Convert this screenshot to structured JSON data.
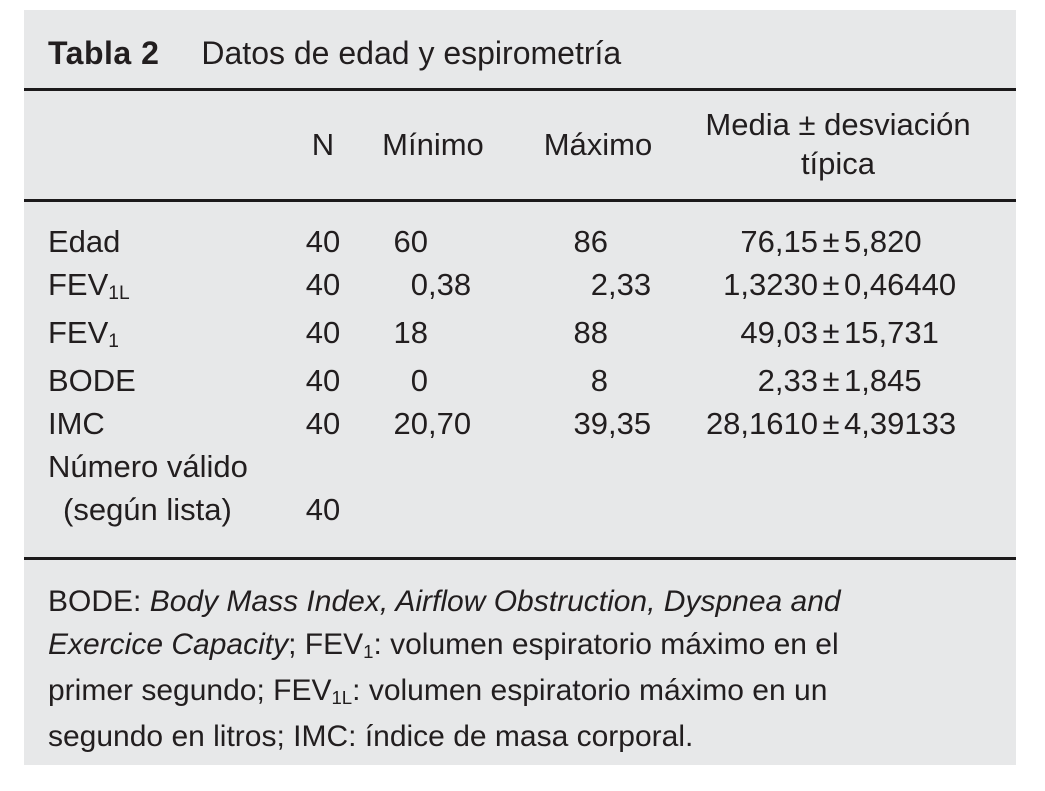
{
  "colors": {
    "panel_background": "#e7e8e9",
    "text": "#221e1f",
    "rule": "#1c1a1b",
    "page_background": "#ffffff"
  },
  "table": {
    "title_label": "Tabla 2",
    "title": "Datos de edad y espirometría",
    "columns": {
      "n": "N",
      "min": "Mínimo",
      "max": "Máximo",
      "media_line1": "Media ± desviación",
      "media_line2": "típica"
    },
    "rows": [
      {
        "label": [
          {
            "t": "Edad"
          }
        ],
        "n": "40",
        "min_int": "60",
        "min_frac": "",
        "max_int": "86",
        "max_frac": "",
        "mean": "76,15",
        "pm": "±",
        "sd": "5,820"
      },
      {
        "label": [
          {
            "t": "FEV"
          },
          {
            "t": "1L",
            "sub": true
          }
        ],
        "n": "40",
        "min_int": "0",
        "min_frac": ",38",
        "max_int": "2",
        "max_frac": ",33",
        "mean": "1,3230",
        "pm": "±",
        "sd": "0,46440"
      },
      {
        "label": [
          {
            "t": "FEV"
          },
          {
            "t": "1",
            "sub": true
          }
        ],
        "n": "40",
        "min_int": "18",
        "min_frac": "",
        "max_int": "88",
        "max_frac": "",
        "mean": "49,03",
        "pm": "±",
        "sd": "15,731"
      },
      {
        "label": [
          {
            "t": "BODE"
          }
        ],
        "n": "40",
        "min_int": "0",
        "min_frac": "",
        "max_int": "8",
        "max_frac": "",
        "mean": "2,33",
        "pm": "±",
        "sd": "1,845"
      },
      {
        "label": [
          {
            "t": "IMC"
          }
        ],
        "n": "40",
        "min_int": "20",
        "min_frac": ",70",
        "max_int": "39",
        "max_frac": ",35",
        "mean": "28,1610",
        "pm": "±",
        "sd": "4,39133"
      },
      {
        "two_line": true,
        "label_line1": "Número válido",
        "label_line2": "(según lista)",
        "n": "40",
        "min_int": "",
        "min_frac": "",
        "max_int": "",
        "max_frac": "",
        "mean": "",
        "pm": "",
        "sd": ""
      }
    ],
    "footnote_lines": [
      [
        {
          "t": "BODE: "
        },
        {
          "t": "Body Mass Index, Airflow Obstruction, Dyspnea and",
          "i": true
        }
      ],
      [
        {
          "t": "Exercice Capacity",
          "i": true
        },
        {
          "t": "; FEV"
        },
        {
          "t": "1",
          "sub": true
        },
        {
          "t": ": volumen espiratorio máximo en el"
        }
      ],
      [
        {
          "t": "primer segundo; FEV"
        },
        {
          "t": "1L",
          "sub": true
        },
        {
          "t": ": volumen espiratorio máximo en un"
        }
      ],
      [
        {
          "t": "segundo en litros; IMC: índice de masa corporal."
        }
      ]
    ]
  }
}
